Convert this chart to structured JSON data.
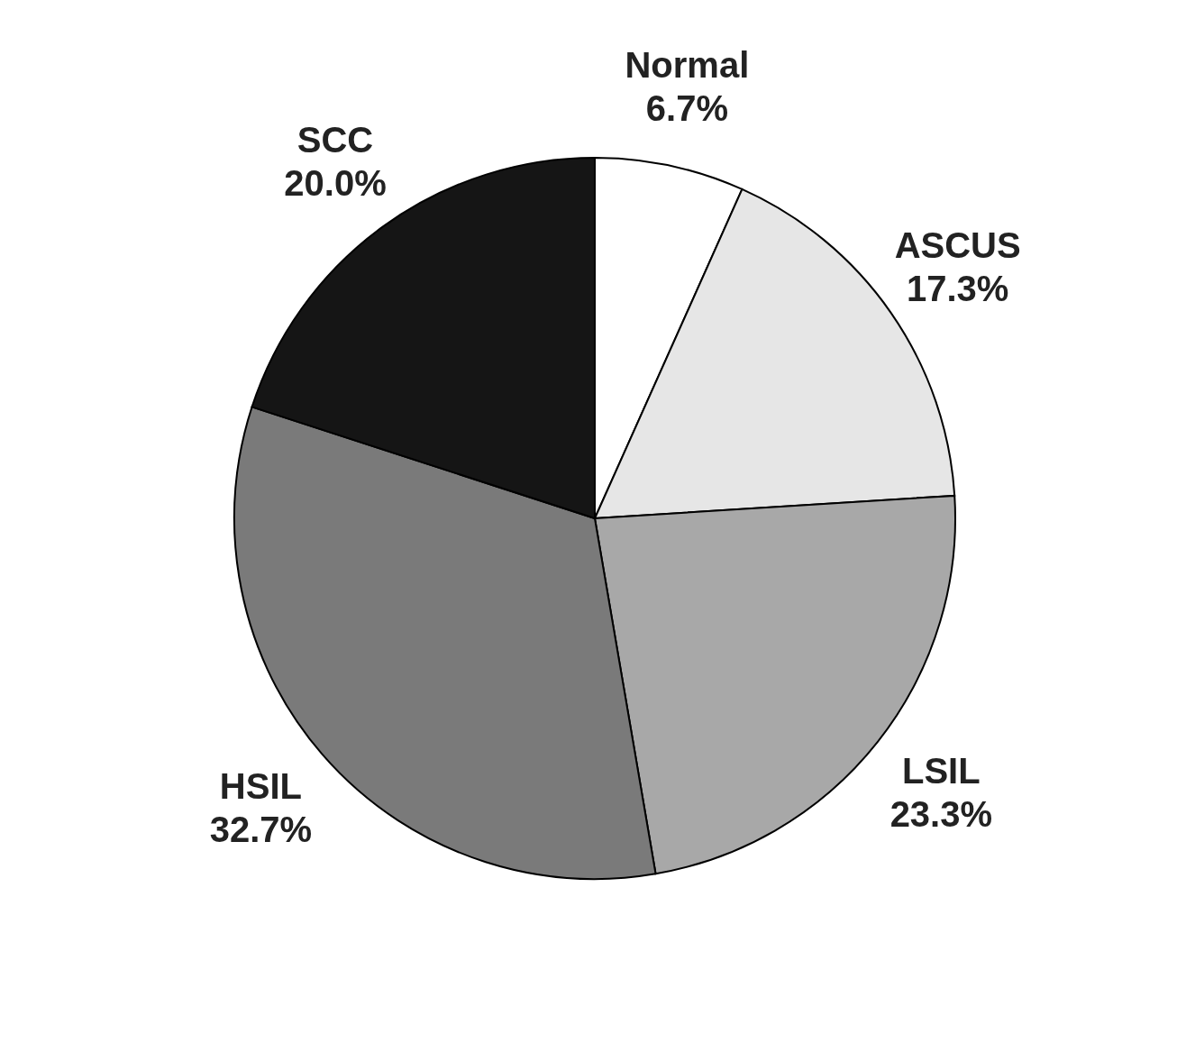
{
  "chart_data": {
    "type": "pie",
    "categories": [
      "Normal",
      "ASCUS",
      "LSIL",
      "HSIL",
      "SCC"
    ],
    "values": [
      6.7,
      17.3,
      23.3,
      32.7,
      20.0
    ],
    "value_labels": [
      "6.7%",
      "17.3%",
      "23.3%",
      "32.7%",
      "20.0%"
    ],
    "colors": [
      "#ffffff",
      "#e6e6e6",
      "#a8a8a8",
      "#7a7a7a",
      "#151515"
    ],
    "legend": false
  }
}
